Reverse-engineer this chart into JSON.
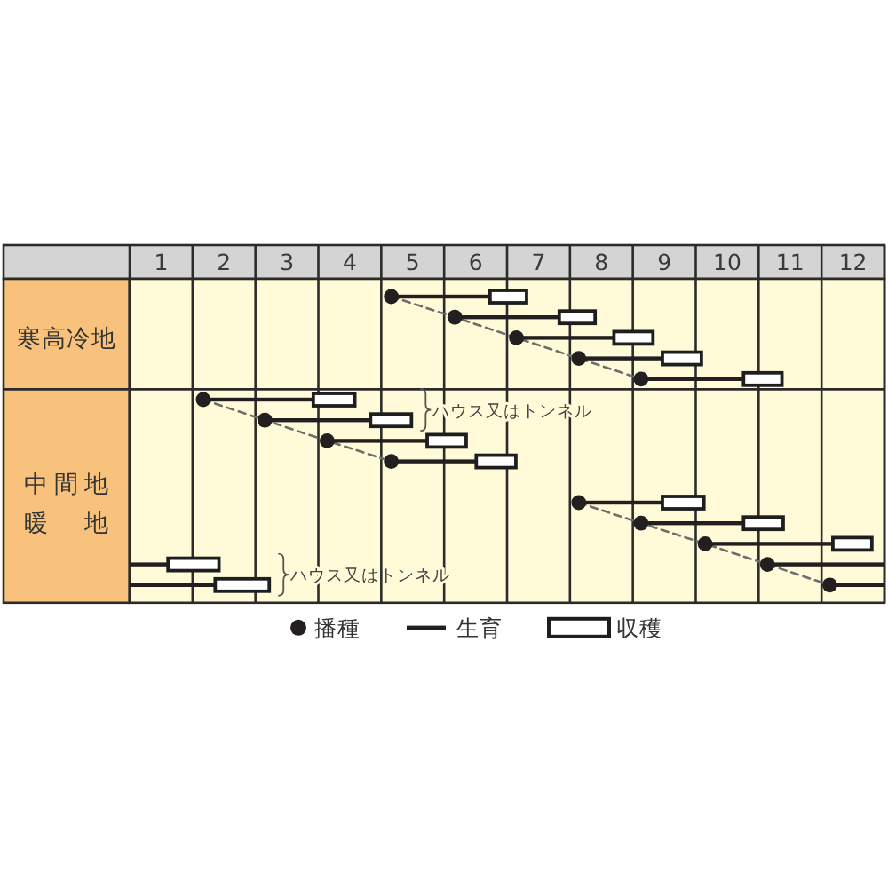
{
  "chart_data": {
    "type": "bar",
    "orientation": "horizontal",
    "categories": [
      null,
      null,
      "寒高冷地",
      null,
      null,
      null,
      null,
      null,
      null,
      null,
      "中間地暖地",
      null,
      null,
      null,
      null
    ],
    "xlim": [
      1,
      13
    ],
    "xticks": [
      {
        "value": 1,
        "label": null
      },
      {
        "value": 1.5,
        "label": "1"
      },
      {
        "value": 2,
        "label": null
      },
      {
        "value": 2.5,
        "label": "2"
      },
      {
        "value": 3,
        "label": null
      },
      {
        "value": 3.5,
        "label": "3"
      },
      {
        "value": 4,
        "label": null
      },
      {
        "value": 4.5,
        "label": "4"
      },
      {
        "value": 5,
        "label": null
      },
      {
        "value": 5.5,
        "label": "5"
      },
      {
        "value": 6,
        "label": null
      },
      {
        "value": 6.5,
        "label": "6"
      },
      {
        "value": 7,
        "label": null
      },
      {
        "value": 7.5,
        "label": "7"
      },
      {
        "value": 8,
        "label": null
      },
      {
        "value": 8.5,
        "label": "8"
      },
      {
        "value": 9,
        "label": null
      },
      {
        "value": 9.5,
        "label": "9"
      },
      {
        "value": 10,
        "label": null
      },
      {
        "value": 10.5,
        "label": "10"
      },
      {
        "value": 11,
        "label": null
      },
      {
        "value": 11.5,
        "label": "11"
      },
      {
        "value": 12,
        "label": null
      },
      {
        "value": 12.5,
        "label": "12"
      },
      {
        "value": 13,
        "label": null
      }
    ],
    "grid": "x",
    "legend": "bottom",
    "series": [
      {
        "name": "播種",
        "type": "scatter",
        "marker": "circle",
        "color": "#231f20",
        "values": [
          5.16,
          6.17,
          7.15,
          8.14,
          9.13,
          2.17,
          3.15,
          4.14,
          5.16,
          null,
          8.14,
          9.13,
          10.15,
          11.14,
          12.13
        ]
      },
      {
        "name": "生育",
        "color": "#231f20",
        "base": [
          5.16,
          6.17,
          7.15,
          8.14,
          9.13,
          2.17,
          3.15,
          4.14,
          5.16,
          null,
          8.14,
          9.13,
          10.15,
          11.14,
          12.13
        ],
        "values": [
          1.57,
          1.66,
          1.55,
          1.33,
          1.63,
          1.75,
          1.68,
          1.59,
          1.35,
          null,
          1.33,
          1.63,
          2.03,
          1.86,
          0.87
        ]
      },
      {
        "name": "収穫",
        "color": "#ffffff",
        "base": [
          6.73,
          7.83,
          8.7,
          9.47,
          10.76,
          3.92,
          4.83,
          5.73,
          6.51,
          null,
          9.47,
          10.76,
          12.18,
          1.61,
          2.36
        ],
        "values": [
          0.58,
          0.57,
          0.62,
          0.62,
          0.61,
          0.66,
          0.65,
          0.62,
          0.63,
          null,
          0.66,
          0.63,
          0.62,
          0.81,
          0.86
        ]
      },
      {
        "color": "#231f20",
        "base": [
          null,
          null,
          null,
          null,
          null,
          null,
          null,
          null,
          null,
          null,
          null,
          null,
          null,
          1,
          1
        ],
        "values": [
          null,
          null,
          null,
          null,
          null,
          null,
          null,
          null,
          null,
          null,
          null,
          null,
          null,
          0.61,
          1.36
        ]
      },
      {
        "type": "line",
        "color": "#6d6d6d",
        "line_style": "dashed",
        "values": [
          5.16,
          6.17,
          7.15,
          8.14,
          9.13,
          null,
          null,
          null,
          null,
          null,
          null,
          null,
          null,
          null,
          null
        ]
      },
      {
        "type": "line",
        "color": "#6d6d6d",
        "line_style": "dashed",
        "values": [
          null,
          null,
          null,
          null,
          null,
          2.17,
          3.15,
          4.14,
          5.16,
          null,
          8.14,
          9.13,
          10.15,
          11.14,
          12.13
        ]
      }
    ],
    "annotations": [
      "ハウス又はトンネル",
      "ハウス又はトンネル"
    ]
  }
}
